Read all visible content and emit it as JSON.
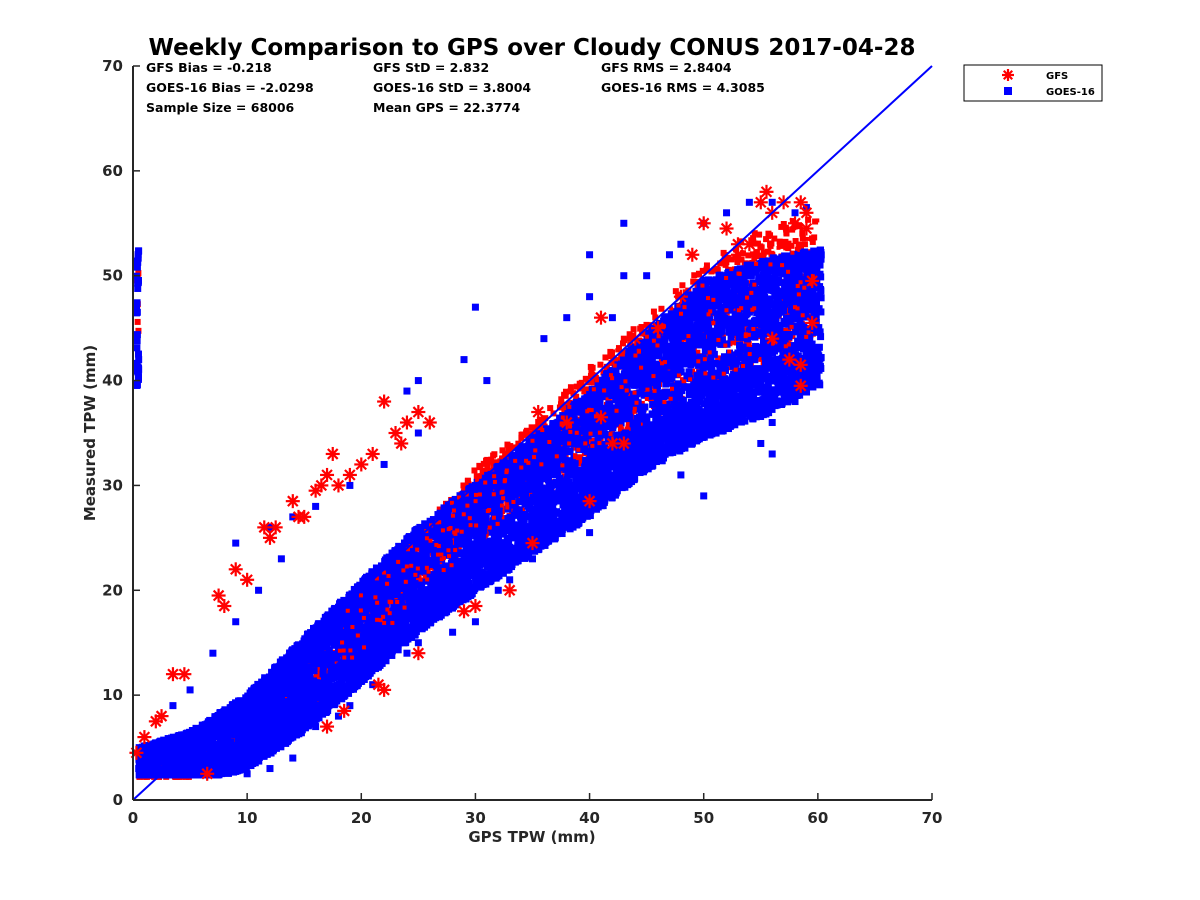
{
  "chart_data": {
    "type": "scatter",
    "title": "Weekly Comparison to GPS over Cloudy CONUS 2017-04-28",
    "xlabel": "GPS TPW (mm)",
    "ylabel": "Measured TPW (mm)",
    "xlim": [
      0,
      70
    ],
    "ylim": [
      0,
      70
    ],
    "xticks": [
      "0",
      "10",
      "20",
      "30",
      "40",
      "50",
      "60",
      "70"
    ],
    "yticks": [
      "0",
      "10",
      "20",
      "30",
      "40",
      "50",
      "60",
      "70"
    ],
    "grid": false,
    "legend_position": "top-right",
    "stats": [
      [
        "GFS Bias = -0.218",
        "GFS StD = 2.832",
        "GFS RMS = 2.8404"
      ],
      [
        "GOES-16 Bias = -2.0298",
        "GOES-16 StD = 3.8004",
        "GOES-16 RMS = 4.3085"
      ],
      [
        "Sample Size = 68006",
        "Mean GPS = 22.3774",
        ""
      ]
    ],
    "reference_line": {
      "x": [
        0,
        70
      ],
      "y": [
        0,
        70
      ],
      "color": "#0000ff"
    },
    "series": [
      {
        "name": "GFS",
        "marker": "asterisk",
        "color": "#ff0000",
        "cloud": [
          [
            0.5,
            3.5
          ],
          [
            5,
            4
          ],
          [
            10,
            6
          ],
          [
            15,
            11
          ],
          [
            20,
            17
          ],
          [
            25,
            22
          ],
          [
            30,
            28
          ],
          [
            35,
            32
          ],
          [
            40,
            37
          ],
          [
            45,
            41
          ],
          [
            50,
            45
          ],
          [
            55,
            48
          ],
          [
            60,
            50
          ]
        ],
        "cloud_halfwidth": [
          1.5,
          2.0,
          2.5,
          3.0,
          3.2,
          3.4,
          3.6,
          3.8,
          4.2,
          5.0,
          6.0,
          6.5,
          6.0
        ],
        "points": [
          [
            0.3,
            4.5
          ],
          [
            1,
            6
          ],
          [
            2,
            7.5
          ],
          [
            2.5,
            8
          ],
          [
            3.5,
            12
          ],
          [
            4.5,
            12
          ],
          [
            6.5,
            2.5
          ],
          [
            7.5,
            19.5
          ],
          [
            8,
            18.5
          ],
          [
            9,
            22
          ],
          [
            10,
            21
          ],
          [
            11.5,
            26
          ],
          [
            12,
            25
          ],
          [
            12.5,
            26
          ],
          [
            14,
            28.5
          ],
          [
            14.5,
            27
          ],
          [
            15,
            27
          ],
          [
            16,
            29.5
          ],
          [
            16.5,
            30
          ],
          [
            17,
            31
          ],
          [
            17.5,
            33
          ],
          [
            18,
            30
          ],
          [
            18.5,
            8.5
          ],
          [
            17,
            7
          ],
          [
            19,
            31
          ],
          [
            20,
            32
          ],
          [
            21,
            33
          ],
          [
            22,
            38
          ],
          [
            23,
            35
          ],
          [
            23.5,
            34
          ],
          [
            24,
            36
          ],
          [
            25,
            37
          ],
          [
            26,
            36
          ],
          [
            21.5,
            11
          ],
          [
            22,
            10.5
          ],
          [
            25,
            14
          ],
          [
            29,
            18
          ],
          [
            30,
            18.5
          ],
          [
            33,
            20
          ],
          [
            35,
            24.5
          ],
          [
            40,
            28.5
          ],
          [
            42,
            34
          ],
          [
            43,
            34
          ],
          [
            41,
            46
          ],
          [
            46,
            45
          ],
          [
            48,
            48
          ],
          [
            50,
            55
          ],
          [
            52,
            54.5
          ],
          [
            53,
            53
          ],
          [
            55,
            57
          ],
          [
            55.5,
            58
          ],
          [
            56,
            56
          ],
          [
            57,
            57
          ],
          [
            58,
            55
          ],
          [
            58.5,
            57
          ],
          [
            59,
            56
          ],
          [
            59,
            54.5
          ],
          [
            59.5,
            49.5
          ],
          [
            59.5,
            45.5
          ],
          [
            58.5,
            41.5
          ],
          [
            58.5,
            39.5
          ],
          [
            57.5,
            42
          ],
          [
            56,
            44
          ],
          [
            53,
            52
          ],
          [
            54,
            53
          ],
          [
            49,
            52
          ],
          [
            44,
            44
          ],
          [
            41,
            36.5
          ],
          [
            38,
            36
          ],
          [
            35.5,
            37
          ]
        ]
      },
      {
        "name": "GOES-16",
        "marker": "square",
        "color": "#0000ff",
        "cloud": [
          [
            0.5,
            3
          ],
          [
            5,
            4
          ],
          [
            10,
            6.5
          ],
          [
            15,
            11
          ],
          [
            20,
            16
          ],
          [
            25,
            21
          ],
          [
            30,
            25
          ],
          [
            35,
            29
          ],
          [
            40,
            33
          ],
          [
            45,
            38
          ],
          [
            50,
            42
          ],
          [
            55,
            44
          ],
          [
            60,
            46
          ]
        ],
        "cloud_halfwidth": [
          2.0,
          2.5,
          3.5,
          4.5,
          4.8,
          5.0,
          5.2,
          5.5,
          6.0,
          6.5,
          7.5,
          7.5,
          6.5
        ],
        "points": [
          [
            10,
            2.5
          ],
          [
            12,
            3
          ],
          [
            14,
            4
          ],
          [
            9,
            24.5
          ],
          [
            12,
            26
          ],
          [
            14,
            27
          ],
          [
            24,
            39
          ],
          [
            25,
            40
          ],
          [
            29,
            42
          ],
          [
            30,
            47
          ],
          [
            31,
            40
          ],
          [
            36,
            44
          ],
          [
            38,
            46
          ],
          [
            40,
            48
          ],
          [
            40,
            52
          ],
          [
            42,
            46
          ],
          [
            43,
            50
          ],
          [
            45,
            50
          ],
          [
            47,
            52
          ],
          [
            48,
            53
          ],
          [
            50,
            55
          ],
          [
            52,
            56
          ],
          [
            54,
            57
          ],
          [
            56,
            57
          ],
          [
            58,
            56
          ],
          [
            59,
            56.5
          ],
          [
            60,
            48
          ],
          [
            60,
            45
          ],
          [
            58,
            38
          ],
          [
            56,
            36
          ],
          [
            55,
            34
          ],
          [
            56,
            33
          ],
          [
            50,
            29
          ],
          [
            48,
            31
          ],
          [
            46,
            33
          ],
          [
            45,
            32
          ],
          [
            43,
            31
          ],
          [
            42,
            30
          ],
          [
            40,
            29
          ],
          [
            40,
            25.5
          ],
          [
            38,
            26
          ],
          [
            37,
            25
          ],
          [
            35,
            23
          ],
          [
            33,
            21
          ],
          [
            32,
            20
          ],
          [
            30,
            17
          ],
          [
            28,
            16
          ],
          [
            25,
            15
          ],
          [
            24,
            14
          ],
          [
            21,
            11
          ],
          [
            19,
            9
          ],
          [
            18,
            8
          ],
          [
            16,
            7
          ],
          [
            14,
            6
          ],
          [
            10,
            3.5
          ],
          [
            8,
            3
          ],
          [
            5,
            2.5
          ],
          [
            3,
            2.5
          ],
          [
            0.5,
            3
          ],
          [
            1,
            3.5
          ],
          [
            43,
            55
          ],
          [
            25,
            35
          ],
          [
            22,
            32
          ],
          [
            19,
            30
          ],
          [
            16,
            28
          ],
          [
            13,
            23
          ],
          [
            11,
            20
          ],
          [
            9,
            17
          ],
          [
            7,
            14
          ],
          [
            5,
            10.5
          ],
          [
            3.5,
            9
          ]
        ]
      }
    ]
  }
}
